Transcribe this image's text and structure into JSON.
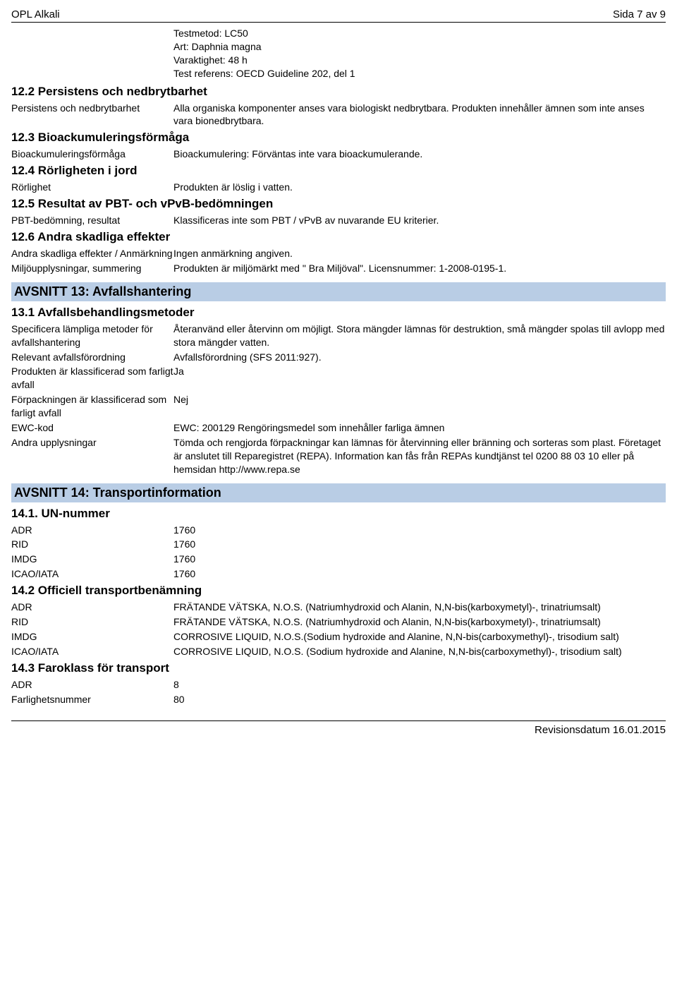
{
  "header": {
    "product": "OPL Alkali",
    "page_info": "Sida 7 av 9"
  },
  "pretext": {
    "test_method": "Testmetod: LC50",
    "species": "Art: Daphnia magna",
    "duration": "Varaktighet: 48 h",
    "reference": "Test referens: OECD Guideline 202, del 1"
  },
  "s12_2": {
    "heading": "12.2 Persistens och nedbrytbarhet",
    "row1_label": "Persistens och nedbrytbarhet",
    "row1_value": "Alla organiska komponenter anses vara biologiskt nedbrytbara. Produkten innehåller ämnen som inte anses vara bionedbrytbara."
  },
  "s12_3": {
    "heading": "12.3 Bioackumuleringsförmåga",
    "row1_label": "Bioackumuleringsförmåga",
    "row1_value": "Bioackumulering: Förväntas inte vara bioackumulerande."
  },
  "s12_4": {
    "heading": "12.4 Rörligheten i jord",
    "row1_label": "Rörlighet",
    "row1_value": "Produkten är löslig i vatten."
  },
  "s12_5": {
    "heading": "12.5 Resultat av PBT- och vPvB-bedömningen",
    "row1_label": "PBT-bedömning, resultat",
    "row1_value": "Klassificeras inte som PBT / vPvB av nuvarande EU kriterier."
  },
  "s12_6": {
    "heading": "12.6 Andra skadliga effekter",
    "row1_label": "Andra skadliga effekter / Anmärkning",
    "row1_value": "Ingen anmärkning angiven.",
    "row2_label": "Miljöupplysningar, summering",
    "row2_value": "Produkten är miljömärkt med \" Bra Miljöval\". Licensnummer: 1-2008-0195-1."
  },
  "s13": {
    "bar": "AVSNITT 13: Avfallshantering",
    "sub1": "13.1 Avfallsbehandlingsmetoder",
    "r1_label": "Specificera lämpliga metoder för avfallshantering",
    "r1_value": "Återanvänd eller återvinn om möjligt. Stora mängder lämnas för destruktion, små mängder spolas till avlopp med stora mängder vatten.",
    "r2_label": "Relevant avfallsförordning",
    "r2_value": "Avfallsförordning (SFS 2011:927).",
    "r3_label": "Produkten är klassificerad som farligt avfall",
    "r3_value": "Ja",
    "r4_label": "Förpackningen är klassificerad som farligt avfall",
    "r4_value": "Nej",
    "r5_label": "EWC-kod",
    "r5_value": "EWC: 200129 Rengöringsmedel som innehåller farliga ämnen",
    "r6_label": "Andra upplysningar",
    "r6_value": "Tömda och rengjorda förpackningar kan lämnas för återvinning eller bränning och sorteras som plast. Företaget är anslutet till Reparegistret (REPA). Information kan fås från REPAs kundtjänst tel 0200 88 03 10 eller på hemsidan http://www.repa.se"
  },
  "s14": {
    "bar": "AVSNITT 14: Transportinformation",
    "sub1": "14.1. UN-nummer",
    "un_adr_l": "ADR",
    "un_adr_v": "1760",
    "un_rid_l": "RID",
    "un_rid_v": "1760",
    "un_imdg_l": "IMDG",
    "un_imdg_v": "1760",
    "un_icao_l": "ICAO/IATA",
    "un_icao_v": "1760",
    "sub2": "14.2 Officiell transportbenämning",
    "tn_adr_l": "ADR",
    "tn_adr_v": "FRÄTANDE VÄTSKA, N.O.S. (Natriumhydroxid och Alanin, N,N-bis(karboxymetyl)-, trinatriumsalt)",
    "tn_rid_l": "RID",
    "tn_rid_v": "FRÄTANDE VÄTSKA, N.O.S. (Natriumhydroxid och Alanin, N,N-bis(karboxymetyl)-, trinatriumsalt)",
    "tn_imdg_l": "IMDG",
    "tn_imdg_v": "CORROSIVE LIQUID, N.O.S.(Sodium hydroxide and Alanine, N,N-bis(carboxymethyl)-, trisodium salt)",
    "tn_icao_l": "ICAO/IATA",
    "tn_icao_v": "CORROSIVE LIQUID, N.O.S. (Sodium hydroxide and Alanine, N,N-bis(carboxymethyl)-, trisodium salt)",
    "sub3": "14.3 Faroklass för transport",
    "hc_adr_l": "ADR",
    "hc_adr_v": "8",
    "hc_fn_l": "Farlighetsnummer",
    "hc_fn_v": "80"
  },
  "footer": {
    "revision": "Revisionsdatum 16.01.2015"
  }
}
